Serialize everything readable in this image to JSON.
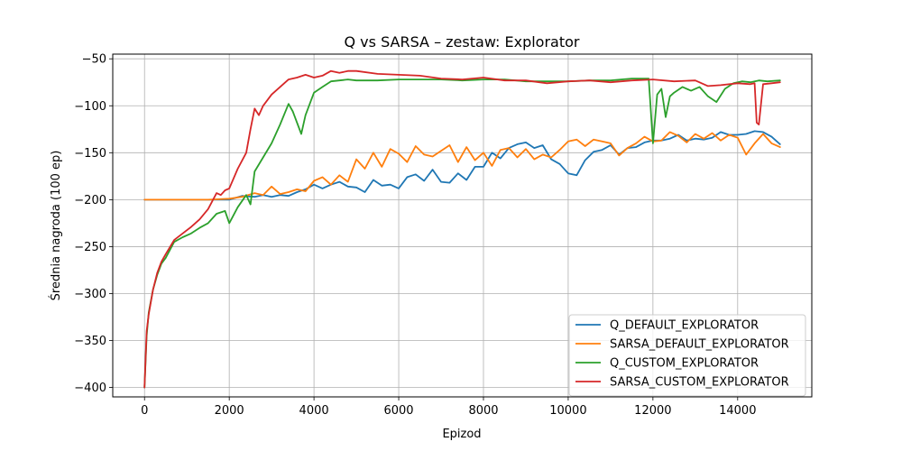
{
  "chart_data": {
    "type": "line",
    "title": "Q vs SARSA – zestaw: Explorator",
    "xlabel": "Epizod",
    "ylabel": "Średnia nagroda (100 ep)",
    "xlim": [
      -750,
      15750
    ],
    "ylim": [
      -410,
      -45
    ],
    "xticks": [
      0,
      2000,
      4000,
      6000,
      8000,
      10000,
      12000,
      14000
    ],
    "xtick_labels": [
      "0",
      "2000",
      "4000",
      "6000",
      "8000",
      "10000",
      "12000",
      "14000"
    ],
    "yticks": [
      -400,
      -350,
      -300,
      -250,
      -200,
      -150,
      -100,
      -50
    ],
    "ytick_labels": [
      "−400",
      "−350",
      "−300",
      "−250",
      "−200",
      "−150",
      "−100",
      "−50"
    ],
    "grid": true,
    "legend_position": "lower-right",
    "series": [
      {
        "name": "Q_DEFAULT_EXPLORATOR",
        "color": "#1f77b4",
        "x": [
          0,
          500,
          1000,
          1500,
          2000,
          2300,
          2600,
          2800,
          3000,
          3200,
          3400,
          3600,
          3800,
          4000,
          4200,
          4400,
          4600,
          4800,
          5000,
          5200,
          5400,
          5600,
          5800,
          6000,
          6200,
          6400,
          6600,
          6800,
          7000,
          7200,
          7400,
          7600,
          7800,
          8000,
          8200,
          8400,
          8600,
          8800,
          9000,
          9200,
          9400,
          9600,
          9800,
          10000,
          10200,
          10400,
          10600,
          10800,
          11000,
          11200,
          11400,
          11600,
          11800,
          12000,
          12200,
          12400,
          12600,
          12800,
          13000,
          13200,
          13400,
          13600,
          13800,
          14000,
          14200,
          14400,
          14600,
          14800,
          15000
        ],
        "y": [
          -200,
          -200,
          -200,
          -200,
          -200,
          -196,
          -197,
          -195,
          -197,
          -195,
          -196,
          -192,
          -189,
          -184,
          -188,
          -184,
          -181,
          -186,
          -187,
          -192,
          -179,
          -185,
          -184,
          -188,
          -176,
          -173,
          -180,
          -168,
          -181,
          -182,
          -172,
          -179,
          -165,
          -165,
          -150,
          -156,
          -145,
          -141,
          -139,
          -145,
          -142,
          -157,
          -162,
          -172,
          -174,
          -158,
          -149,
          -147,
          -142,
          -152,
          -145,
          -144,
          -139,
          -137,
          -137,
          -135,
          -131,
          -137,
          -135,
          -136,
          -134,
          -128,
          -131,
          -131,
          -130,
          -127,
          -128,
          -133,
          -141
        ]
      },
      {
        "name": "SARSA_DEFAULT_EXPLORATOR",
        "color": "#ff7f0e",
        "x": [
          0,
          500,
          1000,
          1500,
          2000,
          2300,
          2600,
          2800,
          3000,
          3200,
          3400,
          3600,
          3800,
          4000,
          4200,
          4400,
          4600,
          4800,
          5000,
          5200,
          5400,
          5600,
          5800,
          6000,
          6200,
          6400,
          6600,
          6800,
          7000,
          7200,
          7400,
          7600,
          7800,
          8000,
          8200,
          8400,
          8600,
          8800,
          9000,
          9200,
          9400,
          9600,
          9800,
          10000,
          10200,
          10400,
          10600,
          10800,
          11000,
          11200,
          11400,
          11600,
          11800,
          12000,
          12200,
          12400,
          12600,
          12800,
          13000,
          13200,
          13400,
          13600,
          13800,
          14000,
          14200,
          14400,
          14600,
          14800,
          15000
        ],
        "y": [
          -200,
          -200,
          -200,
          -200,
          -199,
          -197,
          -193,
          -195,
          -186,
          -194,
          -192,
          -189,
          -191,
          -180,
          -176,
          -184,
          -174,
          -181,
          -157,
          -167,
          -150,
          -165,
          -146,
          -151,
          -160,
          -143,
          -152,
          -154,
          -148,
          -142,
          -160,
          -144,
          -158,
          -150,
          -164,
          -147,
          -145,
          -155,
          -146,
          -157,
          -152,
          -155,
          -147,
          -138,
          -136,
          -143,
          -136,
          -138,
          -140,
          -153,
          -145,
          -140,
          -133,
          -138,
          -137,
          -128,
          -132,
          -139,
          -130,
          -135,
          -129,
          -137,
          -131,
          -134,
          -152,
          -140,
          -130,
          -140,
          -144
        ]
      },
      {
        "name": "Q_CUSTOM_EXPLORATOR",
        "color": "#2ca02c",
        "x": [
          0,
          50,
          100,
          200,
          300,
          400,
          500,
          700,
          900,
          1100,
          1300,
          1500,
          1700,
          1900,
          2000,
          2200,
          2400,
          2500,
          2600,
          2800,
          3000,
          3200,
          3400,
          3500,
          3600,
          3700,
          3800,
          4000,
          4200,
          4400,
          4600,
          4800,
          5000,
          5500,
          6000,
          6500,
          7000,
          7500,
          8000,
          8500,
          9000,
          9500,
          10000,
          10500,
          11000,
          11500,
          11900,
          12000,
          12100,
          12200,
          12300,
          12400,
          12500,
          12700,
          12900,
          13100,
          13300,
          13500,
          13700,
          13900,
          14100,
          14300,
          14500,
          14700,
          15000
        ],
        "y": [
          -400,
          -345,
          -320,
          -296,
          -280,
          -268,
          -262,
          -245,
          -240,
          -236,
          -230,
          -225,
          -215,
          -212,
          -225,
          -208,
          -195,
          -205,
          -170,
          -155,
          -140,
          -120,
          -98,
          -106,
          -118,
          -130,
          -110,
          -86,
          -80,
          -74,
          -73,
          -72,
          -73,
          -73,
          -72,
          -72,
          -72,
          -73,
          -72,
          -72,
          -74,
          -74,
          -74,
          -73,
          -73,
          -71,
          -71,
          -140,
          -88,
          -82,
          -112,
          -90,
          -86,
          -80,
          -84,
          -80,
          -90,
          -96,
          -82,
          -76,
          -74,
          -75,
          -73,
          -74,
          -73
        ]
      },
      {
        "name": "SARSA_CUSTOM_EXPLORATOR",
        "color": "#d62728",
        "x": [
          0,
          50,
          100,
          200,
          300,
          400,
          500,
          700,
          900,
          1100,
          1300,
          1500,
          1700,
          1800,
          1900,
          2000,
          2200,
          2400,
          2500,
          2600,
          2700,
          2800,
          3000,
          3200,
          3400,
          3600,
          3800,
          4000,
          4200,
          4400,
          4600,
          4800,
          5000,
          5500,
          6000,
          6500,
          7000,
          7500,
          8000,
          8500,
          9000,
          9500,
          10000,
          10500,
          11000,
          11500,
          12000,
          12500,
          13000,
          13300,
          13600,
          14000,
          14300,
          14400,
          14450,
          14500,
          14600,
          14800,
          15000
        ],
        "y": [
          -400,
          -340,
          -322,
          -296,
          -278,
          -266,
          -258,
          -243,
          -236,
          -229,
          -221,
          -210,
          -193,
          -195,
          -190,
          -188,
          -167,
          -150,
          -125,
          -103,
          -110,
          -100,
          -88,
          -80,
          -72,
          -70,
          -67,
          -70,
          -68,
          -63,
          -65,
          -63,
          -63,
          -66,
          -67,
          -68,
          -71,
          -72,
          -70,
          -73,
          -73,
          -76,
          -74,
          -73,
          -75,
          -73,
          -72,
          -74,
          -73,
          -79,
          -78,
          -76,
          -77,
          -76,
          -118,
          -120,
          -77,
          -76,
          -75
        ]
      }
    ]
  }
}
